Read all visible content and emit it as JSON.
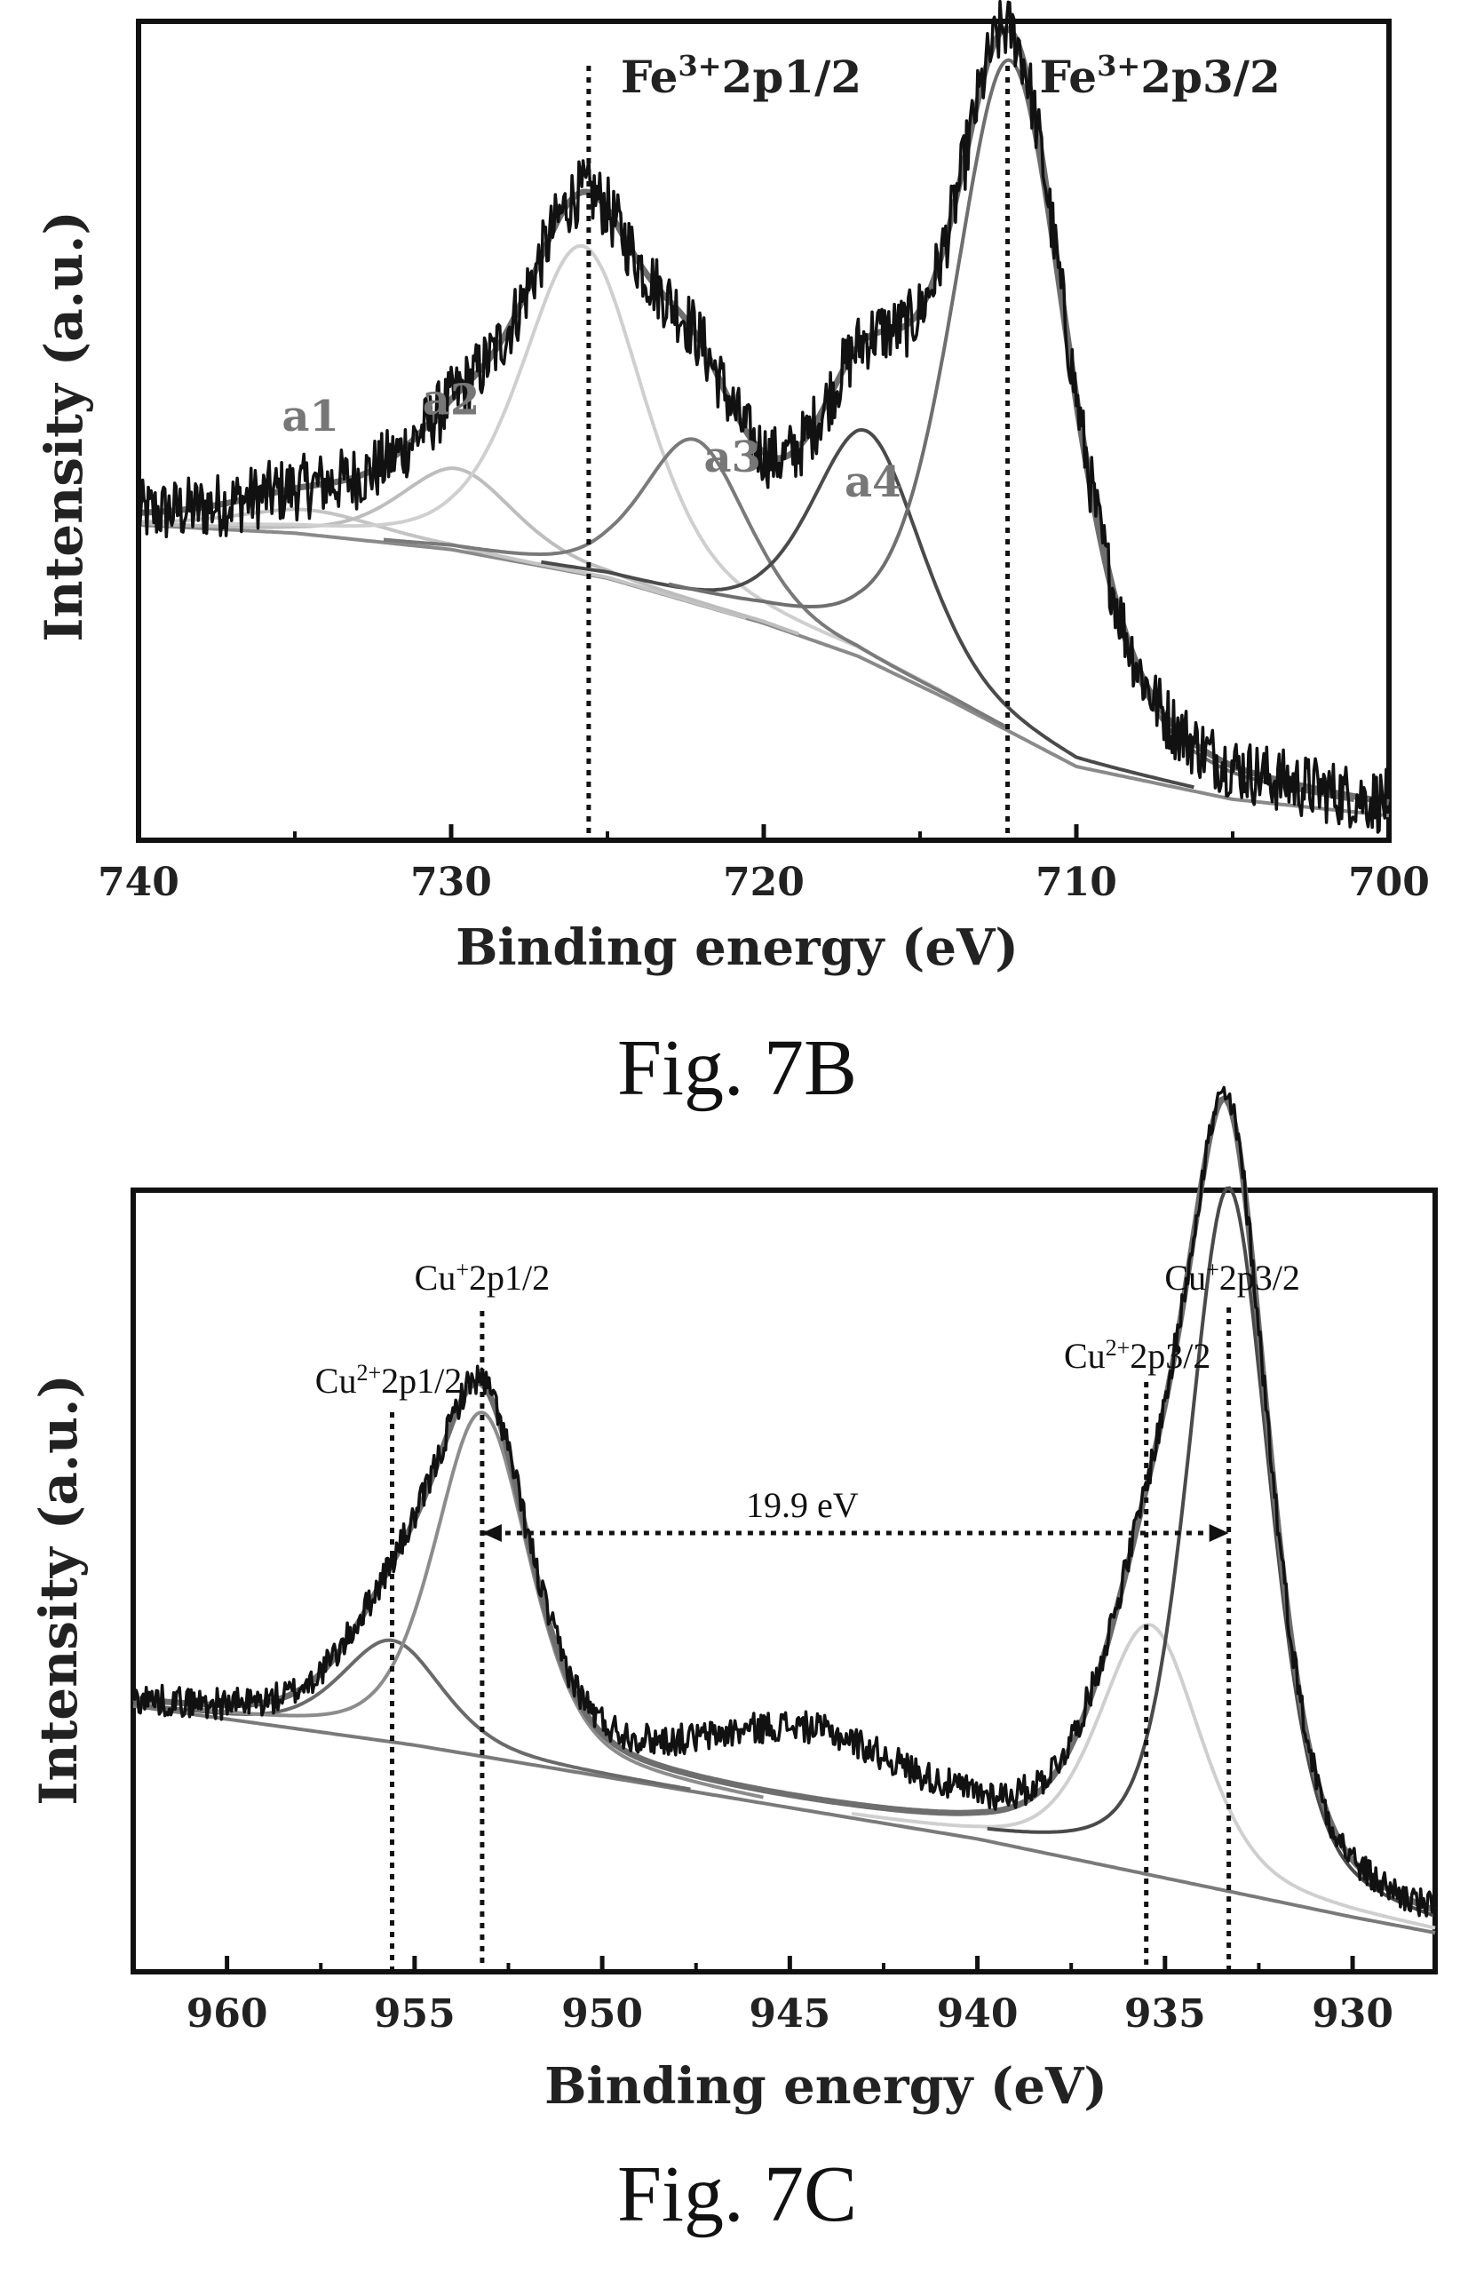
{
  "chart_data": [
    {
      "id": "fig7b",
      "type": "line",
      "caption": "Fig. 7B",
      "xlabel": "Binding energy (eV)",
      "ylabel": "Intensity (a.u.)",
      "xlim": [
        740,
        700
      ],
      "x_reversed": true,
      "x_ticks": [
        "740",
        "730",
        "720",
        "710",
        "700"
      ],
      "x_tick_values": [
        740,
        730,
        720,
        710,
        700
      ],
      "ylim": [
        0,
        1.0
      ],
      "y_ticks_shown": false,
      "reference_lines": [
        {
          "x": 725.6,
          "label_main": "Fe",
          "label_sup": "3+",
          "label_rest": "2p1/2"
        },
        {
          "x": 712.2,
          "label_main": "Fe",
          "label_sup": "3+",
          "label_rest": "2p3/2"
        }
      ],
      "component_labels": [
        {
          "text": "a1",
          "x": 734.5,
          "y": 0.5
        },
        {
          "text": "a2",
          "x": 730.0,
          "y": 0.52
        },
        {
          "text": "a3",
          "x": 721.0,
          "y": 0.45
        },
        {
          "text": "a4",
          "x": 716.5,
          "y": 0.42
        }
      ],
      "background": {
        "name": "",
        "color": "#8a8a8a",
        "x": [
          740,
          735,
          730,
          725,
          720,
          717,
          714,
          712,
          710,
          705,
          700
        ],
        "y": [
          0.385,
          0.375,
          0.355,
          0.32,
          0.265,
          0.225,
          0.17,
          0.13,
          0.09,
          0.05,
          0.03
        ]
      },
      "components": [
        {
          "name": "",
          "center": 734.5,
          "height": 0.03,
          "width": 2.8,
          "color": "#c4c4c4"
        },
        {
          "name": "",
          "center": 729.8,
          "height": 0.1,
          "width": 2.2,
          "color": "#bdbdbd"
        },
        {
          "name": "",
          "center": 725.8,
          "height": 0.4,
          "width": 2.3,
          "color": "#cfcfcf"
        },
        {
          "name": "",
          "center": 722.2,
          "height": 0.2,
          "width": 2.0,
          "color": "#7a7a7a"
        },
        {
          "name": "",
          "center": 716.7,
          "height": 0.28,
          "width": 2.1,
          "color": "#4a4a4a"
        },
        {
          "name": "",
          "center": 712.1,
          "height": 0.82,
          "width": 2.2,
          "color": "#6f6f6f"
        }
      ],
      "raw_data_color": "#111111",
      "noise_amplitude": 0.04
    },
    {
      "id": "fig7c",
      "type": "line",
      "caption": "Fig. 7C",
      "xlabel": "Binding energy (eV)",
      "ylabel": "Intensity (a.u.)",
      "xlim": [
        962.5,
        927.8
      ],
      "x_reversed": true,
      "x_ticks": [
        "960",
        "955",
        "950",
        "945",
        "940",
        "935",
        "930"
      ],
      "x_tick_values": [
        960,
        955,
        950,
        945,
        940,
        935,
        930
      ],
      "ylim": [
        0,
        1.0
      ],
      "y_ticks_shown": false,
      "reference_lines": [
        {
          "x": 955.6,
          "label_main": "Cu",
          "label_sup": "2+",
          "label_rest": "2p1/2"
        },
        {
          "x": 953.2,
          "label_main": "Cu",
          "label_sup": "+",
          "label_rest": "2p1/2"
        },
        {
          "x": 935.5,
          "label_main": "Cu",
          "label_sup": "2+",
          "label_rest": "2p3/2"
        },
        {
          "x": 933.3,
          "label_main": "Cu",
          "label_sup": "+",
          "label_rest": "2p3/2"
        }
      ],
      "splitting_annotation": {
        "text": "19.9 eV",
        "x_from": 953.2,
        "x_to": 933.3,
        "y": 0.58
      },
      "background": {
        "name": "",
        "color": "#7a7a7a",
        "x": [
          962.5,
          955,
          950,
          945,
          940,
          935,
          930,
          927.8
        ],
        "y": [
          0.34,
          0.29,
          0.25,
          0.21,
          0.17,
          0.12,
          0.07,
          0.05
        ]
      },
      "components": [
        {
          "name": "",
          "center": 955.6,
          "height": 0.13,
          "width": 1.6,
          "color": "#6a6a6a"
        },
        {
          "name": "",
          "center": 953.2,
          "height": 0.44,
          "width": 1.5,
          "color": "#8c8c8c"
        },
        {
          "name": "",
          "center": 935.4,
          "height": 0.32,
          "width": 1.6,
          "color": "#cfcfcf"
        },
        {
          "name": "",
          "center": 933.3,
          "height": 0.9,
          "width": 1.3,
          "color": "#4a4a4a"
        }
      ],
      "shake_up": {
        "center": 944.5,
        "height": 0.09,
        "width": 3.2
      },
      "raw_data_color": "#111111",
      "noise_amplitude": 0.02
    }
  ]
}
